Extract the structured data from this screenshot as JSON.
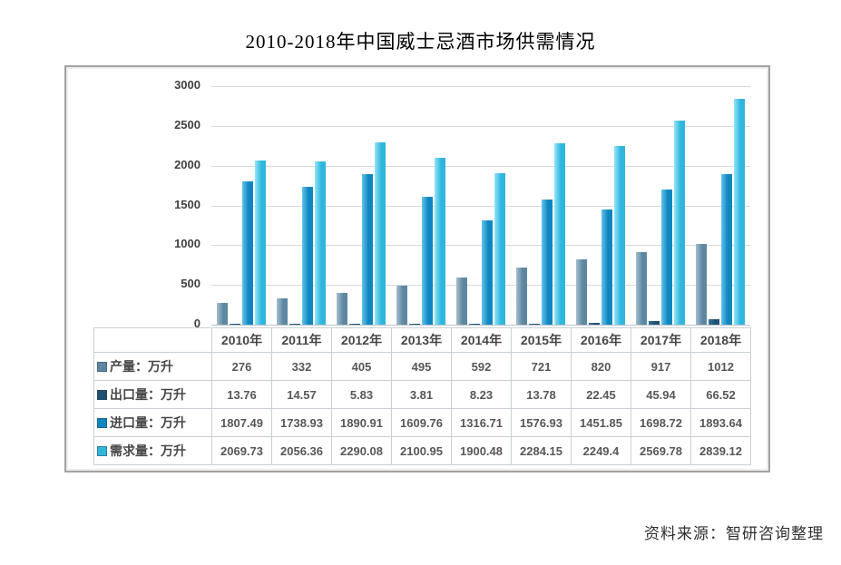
{
  "title": "2010-2018年中国威士忌酒市场供需情况",
  "source_note": "资料来源：智研咨询整理",
  "chart_data": {
    "type": "bar",
    "title": "2010-2018年中国威士忌酒市场供需情况",
    "categories": [
      "2010年",
      "2011年",
      "2012年",
      "2013年",
      "2014年",
      "2015年",
      "2016年",
      "2017年",
      "2018年"
    ],
    "series": [
      {
        "key": "production",
        "name": "产量：万升",
        "color": "#5d87a1",
        "color_light": "#a6bfcd",
        "values": [
          276,
          332,
          405,
          495,
          592,
          721,
          820,
          917,
          1012
        ]
      },
      {
        "key": "export",
        "name": "出口量：万升",
        "color": "#1d4f71",
        "color_light": "#3a749c",
        "values": [
          13.76,
          14.57,
          5.83,
          3.81,
          8.23,
          13.78,
          22.45,
          45.94,
          66.52
        ]
      },
      {
        "key": "import",
        "name": "进口量：万升",
        "color": "#0f86c0",
        "color_light": "#64c3ec",
        "values": [
          1807.49,
          1738.93,
          1890.91,
          1609.76,
          1316.71,
          1576.93,
          1451.85,
          1698.72,
          1893.64
        ]
      },
      {
        "key": "demand",
        "name": "需求量：万升",
        "color": "#2fb6dd",
        "color_light": "#93e5f8",
        "values": [
          2069.73,
          2056.36,
          2290.08,
          2100.95,
          1900.48,
          2284.15,
          2249.4,
          2569.78,
          2839.12
        ]
      }
    ],
    "ylim": [
      0,
      3000
    ],
    "yticks": [
      0,
      500,
      1000,
      1500,
      2000,
      2500,
      3000
    ],
    "grid": true,
    "unit": "万升",
    "xlabel": "",
    "ylabel": "",
    "legend_position": "table-left"
  }
}
